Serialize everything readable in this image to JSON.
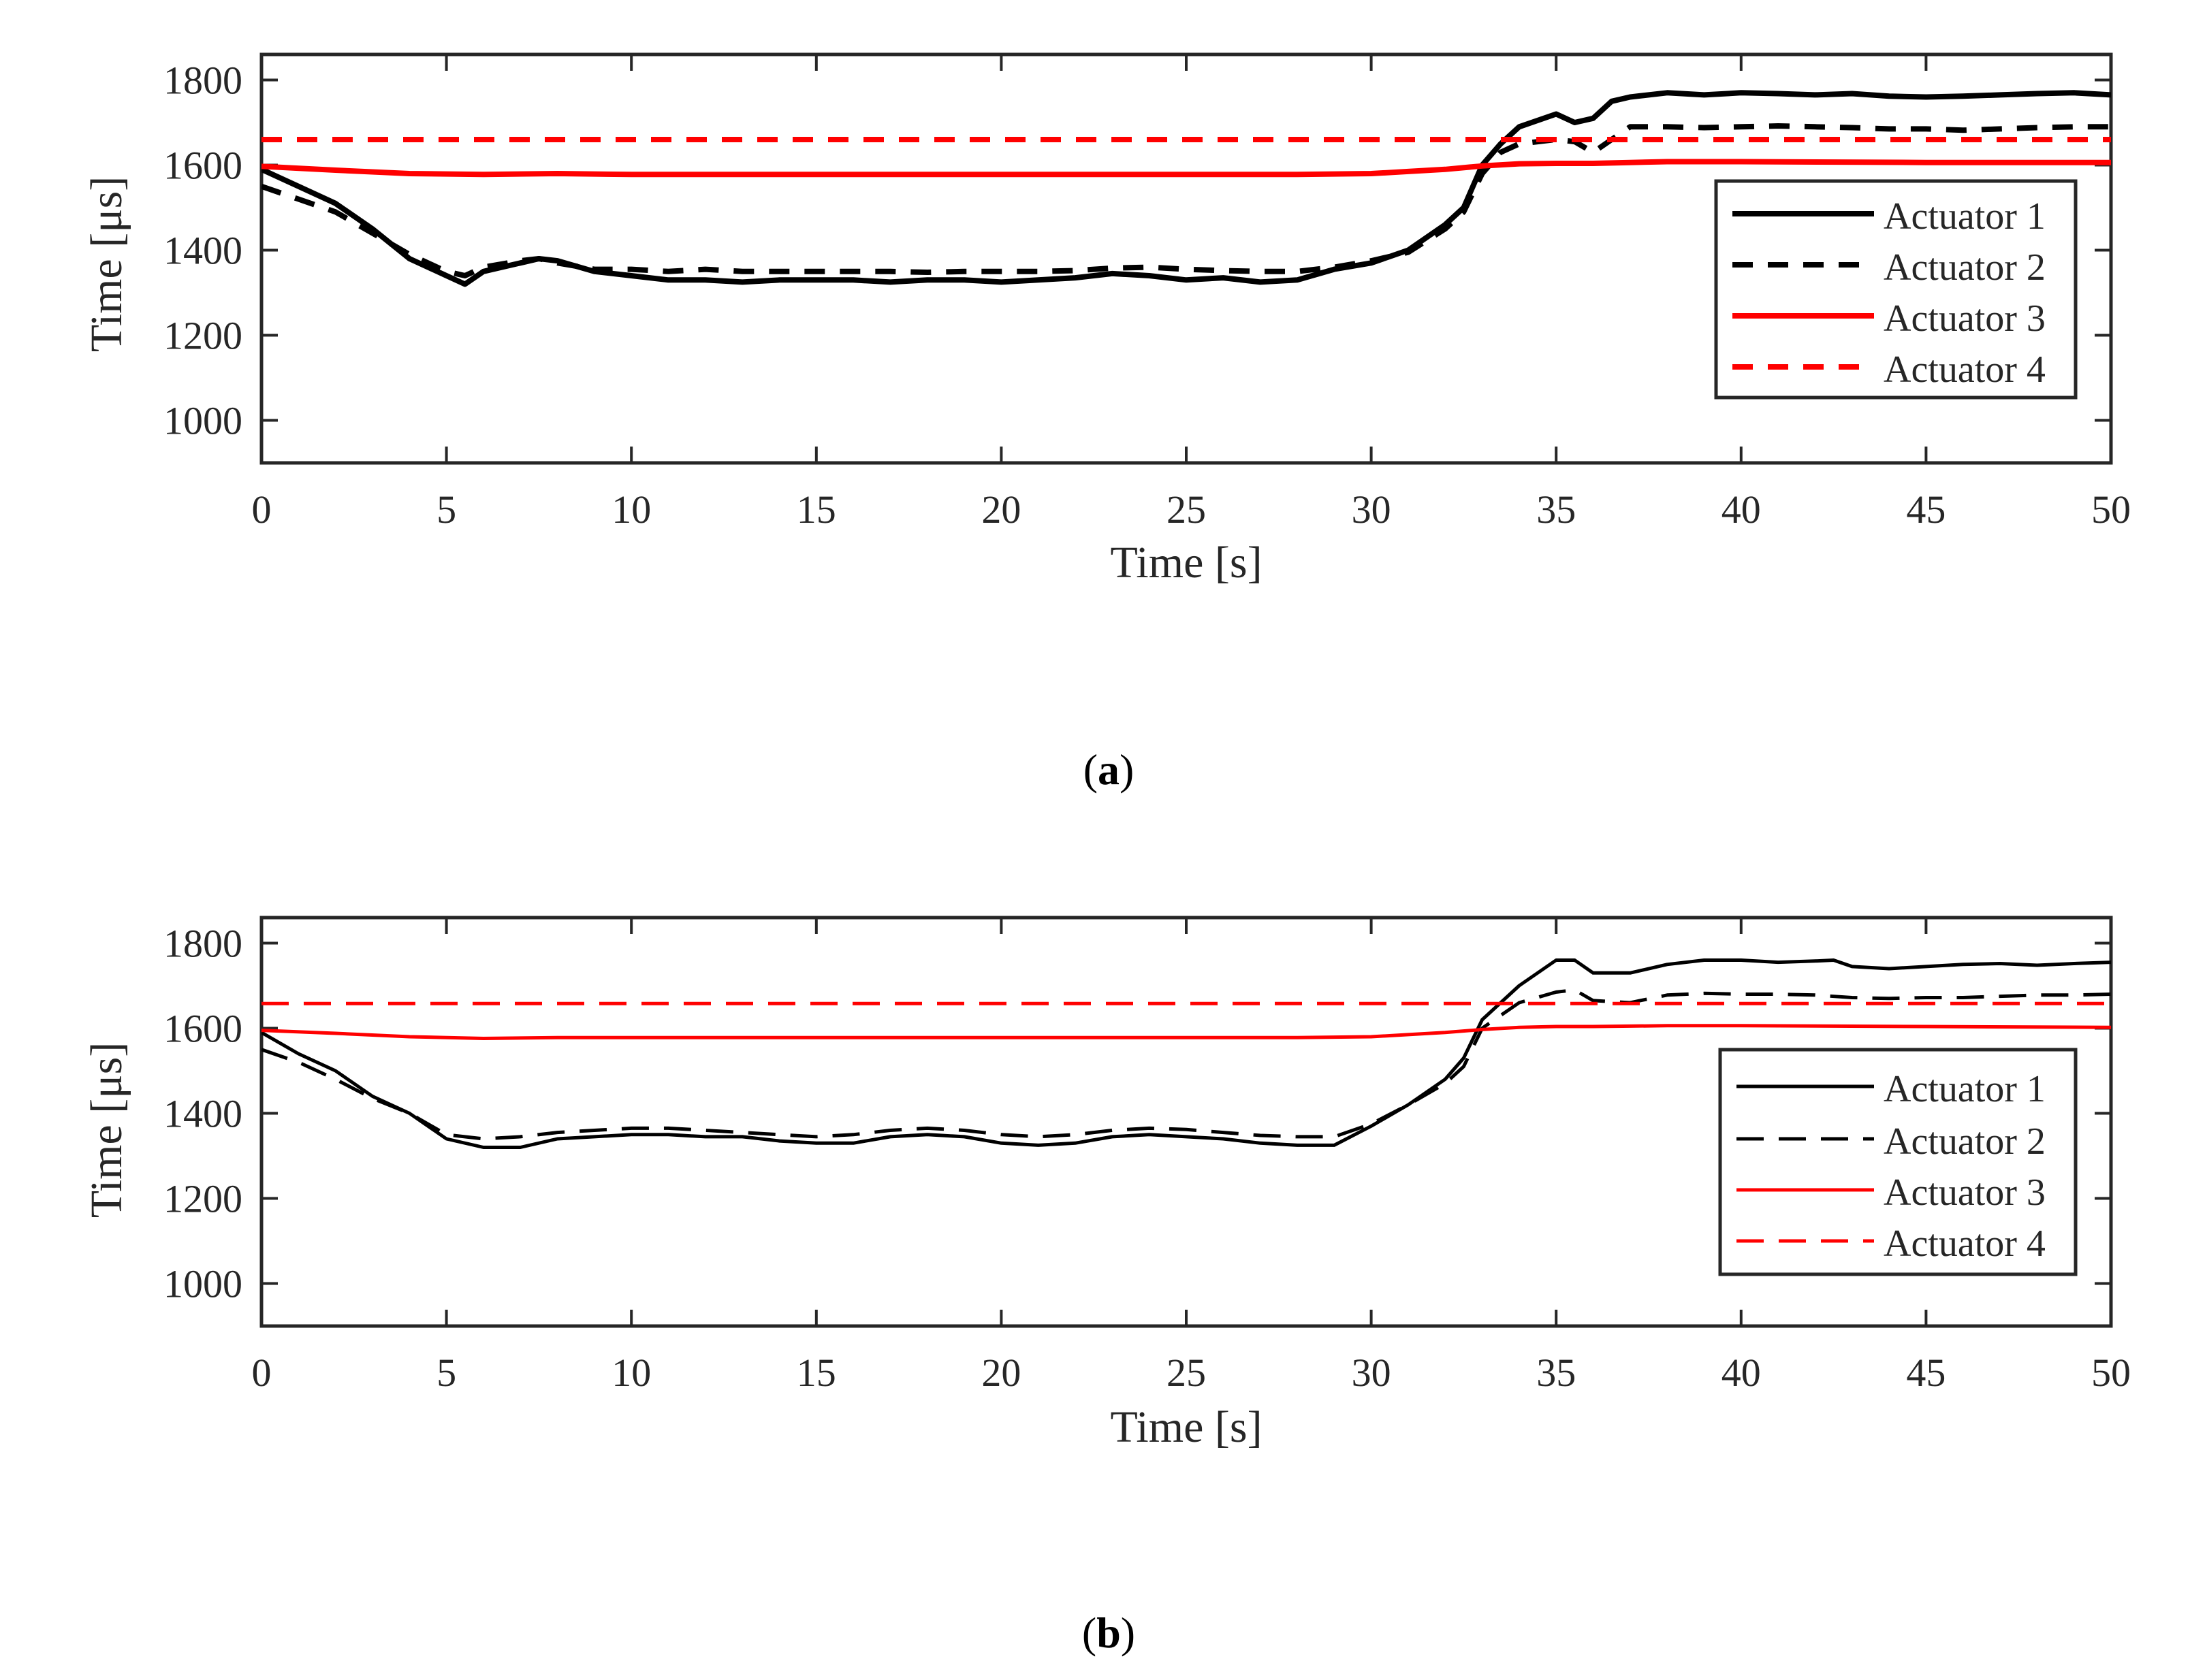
{
  "figure": {
    "panels": [
      {
        "label_open": "(",
        "label_letter": "a",
        "label_close": ")"
      },
      {
        "label_open": "(",
        "label_letter": "b",
        "label_close": ")"
      }
    ]
  },
  "chart_data": [
    {
      "type": "line",
      "panel": "a",
      "xlabel": "Time [s]",
      "ylabel": "Time [μs]",
      "xlim": [
        0,
        50
      ],
      "ylim": [
        900,
        1860
      ],
      "xticks": [
        0,
        5,
        10,
        15,
        20,
        25,
        30,
        35,
        40,
        45,
        50
      ],
      "yticks": [
        1000,
        1200,
        1400,
        1600,
        1800
      ],
      "grid": false,
      "legend_position": "right",
      "series": [
        {
          "name": "Actuator 1",
          "color": "#000000",
          "style": "solid",
          "x": [
            0,
            1,
            2,
            3,
            4,
            5,
            5.5,
            6,
            7,
            7.5,
            8,
            9,
            10,
            11,
            12,
            13,
            14,
            15,
            16,
            17,
            18,
            19,
            20,
            21,
            22,
            23,
            24,
            25,
            26,
            27,
            28,
            29,
            30,
            31,
            32,
            32.5,
            33,
            33.5,
            34,
            35,
            35.5,
            36,
            36.5,
            37,
            38,
            39,
            40,
            41,
            42,
            43,
            44,
            45,
            46,
            47,
            48,
            49,
            50
          ],
          "y": [
            1590,
            1550,
            1510,
            1450,
            1380,
            1340,
            1320,
            1350,
            1370,
            1380,
            1375,
            1350,
            1340,
            1330,
            1330,
            1325,
            1330,
            1330,
            1330,
            1325,
            1330,
            1330,
            1325,
            1330,
            1335,
            1345,
            1340,
            1330,
            1335,
            1325,
            1330,
            1355,
            1370,
            1400,
            1460,
            1500,
            1600,
            1650,
            1690,
            1720,
            1700,
            1710,
            1750,
            1760,
            1770,
            1765,
            1770,
            1768,
            1765,
            1768,
            1762,
            1760,
            1762,
            1765,
            1768,
            1770,
            1765
          ]
        },
        {
          "name": "Actuator 2",
          "color": "#000000",
          "style": "dashed",
          "x": [
            0,
            1,
            2,
            3,
            4,
            5,
            5.5,
            6,
            7,
            7.5,
            8,
            9,
            10,
            11,
            12,
            13,
            14,
            15,
            16,
            17,
            18,
            19,
            20,
            21,
            22,
            23,
            24,
            25,
            26,
            27,
            28,
            29,
            30,
            31,
            32,
            32.5,
            33,
            33.5,
            34,
            35,
            35.5,
            36,
            36.5,
            37,
            38,
            39,
            40,
            41,
            42,
            43,
            44,
            45,
            46,
            47,
            48,
            49,
            50
          ],
          "y": [
            1550,
            1520,
            1490,
            1440,
            1390,
            1350,
            1340,
            1360,
            1375,
            1380,
            1370,
            1355,
            1355,
            1350,
            1355,
            1350,
            1350,
            1350,
            1350,
            1350,
            1348,
            1350,
            1350,
            1350,
            1352,
            1358,
            1360,
            1355,
            1352,
            1350,
            1350,
            1360,
            1375,
            1395,
            1450,
            1490,
            1580,
            1630,
            1650,
            1660,
            1655,
            1630,
            1660,
            1690,
            1690,
            1688,
            1690,
            1692,
            1690,
            1688,
            1685,
            1685,
            1682,
            1685,
            1688,
            1690,
            1690
          ]
        },
        {
          "name": "Actuator 3",
          "color": "#ff0000",
          "style": "solid",
          "x": [
            0,
            2,
            4,
            6,
            8,
            10,
            15,
            20,
            25,
            28,
            30,
            31,
            32,
            33,
            34,
            35,
            36,
            37,
            38,
            40,
            45,
            50
          ],
          "y": [
            1597,
            1588,
            1580,
            1578,
            1580,
            1578,
            1578,
            1578,
            1578,
            1578,
            1580,
            1585,
            1590,
            1598,
            1603,
            1604,
            1604,
            1606,
            1608,
            1608,
            1606,
            1606
          ]
        },
        {
          "name": "Actuator 4",
          "color": "#ff0000",
          "style": "dashed",
          "x": [
            0,
            50
          ],
          "y": [
            1660,
            1660
          ]
        }
      ]
    },
    {
      "type": "line",
      "panel": "b",
      "xlabel": "Time [s]",
      "ylabel": "Time [μs]",
      "xlim": [
        0,
        50
      ],
      "ylim": [
        900,
        1860
      ],
      "xticks": [
        0,
        5,
        10,
        15,
        20,
        25,
        30,
        35,
        40,
        45,
        50
      ],
      "yticks": [
        1000,
        1200,
        1400,
        1600,
        1800
      ],
      "grid": false,
      "legend_position": "right",
      "series": [
        {
          "name": "Actuator 1",
          "color": "#000000",
          "style": "solid",
          "x": [
            0,
            1,
            2,
            3,
            4,
            5,
            6,
            7,
            8,
            9,
            10,
            11,
            12,
            13,
            14,
            15,
            16,
            17,
            18,
            19,
            20,
            21,
            22,
            23,
            24,
            25,
            26,
            27,
            28,
            29,
            30,
            31,
            32,
            32.5,
            33,
            34,
            35,
            35.5,
            36,
            37,
            38,
            39,
            40,
            41,
            42,
            42.5,
            43,
            44,
            45,
            46,
            47,
            48,
            49,
            50
          ],
          "y": [
            1590,
            1540,
            1500,
            1440,
            1400,
            1340,
            1320,
            1320,
            1340,
            1345,
            1350,
            1350,
            1345,
            1345,
            1335,
            1330,
            1330,
            1345,
            1350,
            1345,
            1330,
            1325,
            1330,
            1345,
            1350,
            1345,
            1340,
            1330,
            1325,
            1325,
            1370,
            1420,
            1480,
            1530,
            1620,
            1700,
            1760,
            1760,
            1730,
            1730,
            1750,
            1760,
            1760,
            1755,
            1758,
            1760,
            1745,
            1740,
            1745,
            1750,
            1752,
            1748,
            1752,
            1755
          ]
        },
        {
          "name": "Actuator 2",
          "color": "#000000",
          "style": "dashed",
          "x": [
            0,
            1,
            2,
            3,
            4,
            5,
            6,
            7,
            8,
            9,
            10,
            11,
            12,
            13,
            14,
            15,
            16,
            17,
            18,
            19,
            20,
            21,
            22,
            23,
            24,
            25,
            26,
            27,
            28,
            29,
            30,
            31,
            32,
            32.5,
            33,
            34,
            35,
            35.5,
            36,
            37,
            38,
            39,
            40,
            41,
            42,
            43,
            44,
            45,
            46,
            47,
            48,
            49,
            50
          ],
          "y": [
            1550,
            1520,
            1480,
            1435,
            1400,
            1350,
            1340,
            1345,
            1355,
            1360,
            1365,
            1365,
            1360,
            1355,
            1350,
            1345,
            1350,
            1360,
            1365,
            1360,
            1350,
            1345,
            1350,
            1360,
            1365,
            1362,
            1355,
            1348,
            1345,
            1345,
            1375,
            1420,
            1470,
            1510,
            1600,
            1660,
            1685,
            1690,
            1665,
            1660,
            1678,
            1682,
            1680,
            1680,
            1678,
            1672,
            1670,
            1672,
            1672,
            1675,
            1678,
            1678,
            1680
          ]
        },
        {
          "name": "Actuator 3",
          "color": "#ff0000",
          "style": "solid",
          "x": [
            0,
            2,
            4,
            6,
            8,
            10,
            15,
            20,
            25,
            28,
            30,
            31,
            32,
            33,
            34,
            35,
            36,
            37,
            38,
            40,
            45,
            50
          ],
          "y": [
            1595,
            1588,
            1580,
            1576,
            1578,
            1578,
            1578,
            1578,
            1578,
            1578,
            1580,
            1585,
            1590,
            1597,
            1602,
            1604,
            1604,
            1605,
            1606,
            1606,
            1604,
            1602
          ]
        },
        {
          "name": "Actuator 4",
          "color": "#ff0000",
          "style": "dashed",
          "x": [
            0,
            50
          ],
          "y": [
            1658,
            1658
          ]
        }
      ]
    }
  ]
}
